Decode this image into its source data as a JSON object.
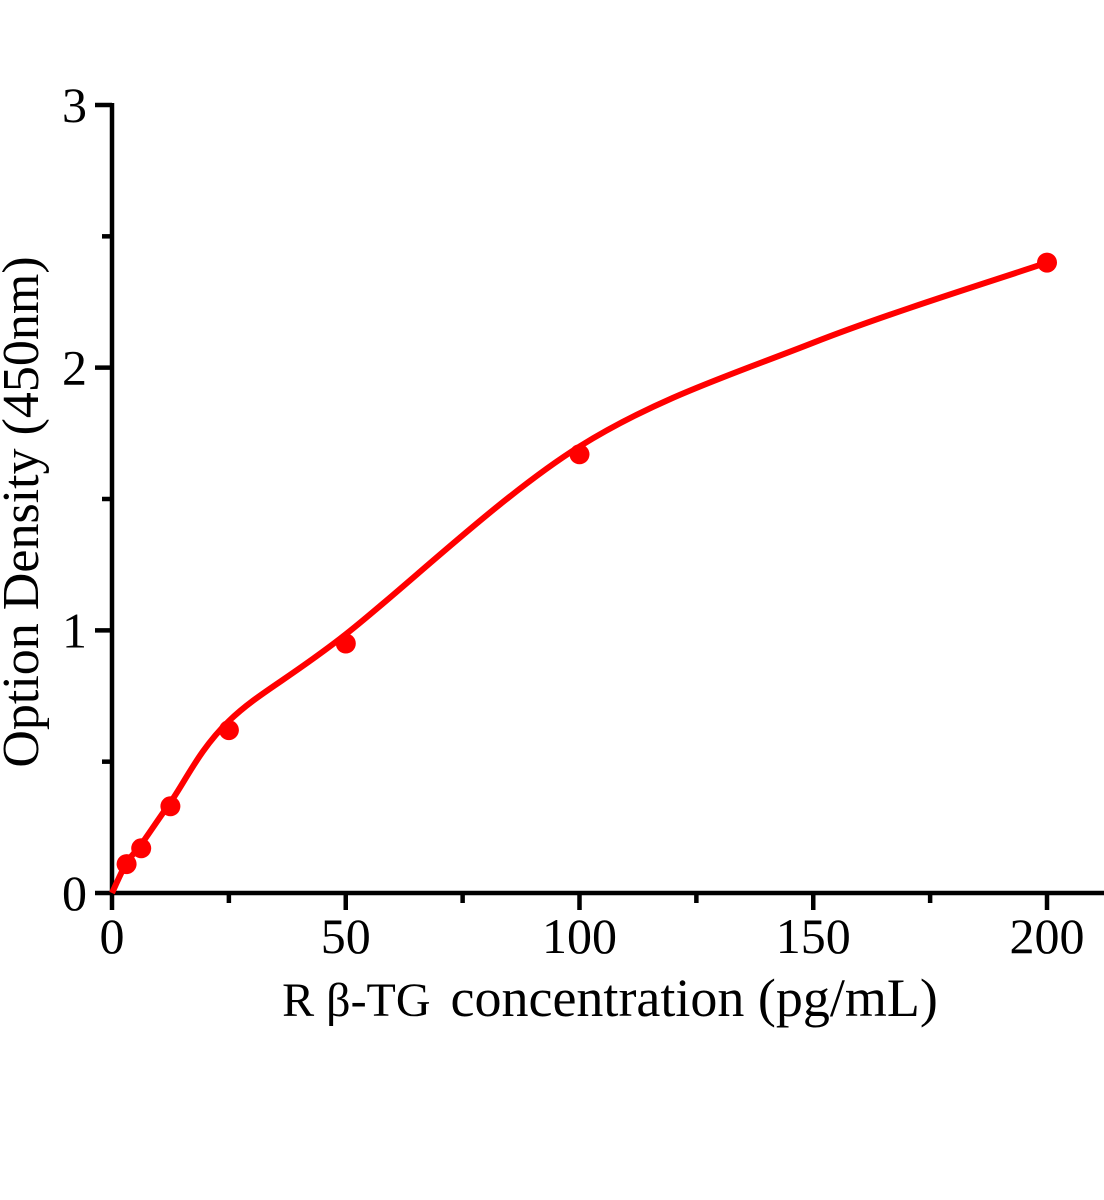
{
  "chart_data": {
    "type": "scatter",
    "subtype": "fitted-standard-curve",
    "title": "",
    "xlabel": "R β-TG concentration (pg/mL)",
    "xlabel_prefix": "R β-TG",
    "xlabel_main": "concentration (pg/mL)",
    "ylabel": "Option Density (450nm)",
    "x": [
      3.125,
      6.25,
      12.5,
      25,
      50,
      100,
      200
    ],
    "y": [
      0.11,
      0.17,
      0.33,
      0.62,
      0.95,
      1.67,
      2.4
    ],
    "curve_points": [
      [
        0,
        0
      ],
      [
        3.125,
        0.115
      ],
      [
        6.25,
        0.185
      ],
      [
        12.5,
        0.345
      ],
      [
        25,
        0.655
      ],
      [
        50,
        0.985
      ],
      [
        100,
        1.7
      ],
      [
        150,
        2.095
      ],
      [
        200,
        2.4
      ]
    ],
    "xlim": [
      0,
      200
    ],
    "ylim": [
      0,
      3
    ],
    "x_major_ticks": [
      0,
      50,
      100,
      150,
      200
    ],
    "x_tick_labels": [
      "0",
      "50",
      "100",
      "150",
      "200"
    ],
    "x_minor_ticks": [
      25,
      75,
      125,
      175
    ],
    "y_major_ticks": [
      0,
      1,
      2,
      3
    ],
    "y_tick_labels": [
      "0",
      "1",
      "2",
      "3"
    ],
    "y_minor_ticks": [
      0.5,
      1.5,
      2.5
    ],
    "grid": false,
    "legend": null,
    "line_color": "#ff0000",
    "marker_color": "#ff0000",
    "axis_color": "#000000",
    "background_color": "#ffffff"
  }
}
